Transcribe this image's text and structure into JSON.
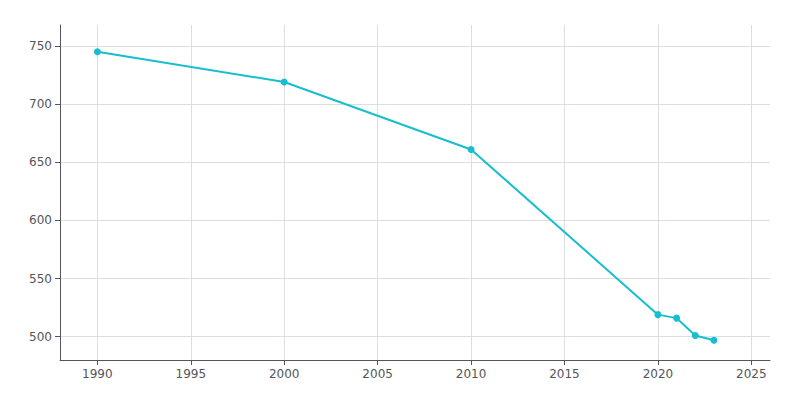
{
  "chart_data": {
    "type": "line",
    "x": [
      1990,
      2000,
      2010,
      2020,
      2021,
      2022,
      2023
    ],
    "values": [
      745,
      719,
      661,
      519,
      516,
      501,
      497
    ],
    "color": "#17BECF",
    "marker": "circle",
    "xlim": [
      1988,
      2026
    ],
    "xticks": [
      1990,
      1995,
      2000,
      2005,
      2010,
      2015,
      2020,
      2025
    ],
    "ylim": [
      480,
      768
    ],
    "yticks": [
      500,
      550,
      600,
      650,
      700,
      750
    ],
    "grid": true
  }
}
